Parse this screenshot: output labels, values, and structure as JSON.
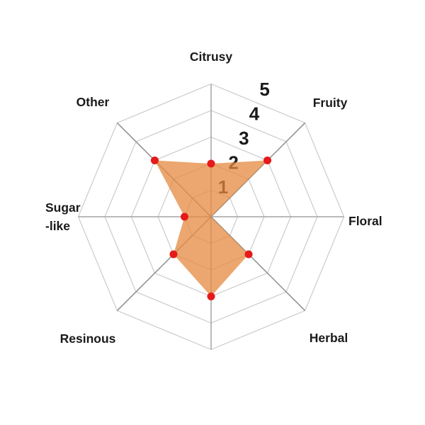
{
  "chart_data": {
    "type": "radar",
    "axes": [
      {
        "label": "Citrusy",
        "value": 2
      },
      {
        "label": "Fruity",
        "value": 3
      },
      {
        "label": "Floral",
        "value": 0
      },
      {
        "label": "Herbal",
        "value": 2
      },
      {
        "label": "",
        "value": 3
      },
      {
        "label": "Resinous",
        "value": 2
      },
      {
        "label": "Sugar\n-like",
        "value": 1
      },
      {
        "label": "Other",
        "value": 3
      }
    ],
    "scale": {
      "min": 0,
      "max": 5,
      "tick_labels": [
        "1",
        "2",
        "3",
        "4",
        "5"
      ]
    },
    "grid": {
      "shape": "octagon",
      "rings": 5,
      "visible": true
    },
    "legend": {
      "visible": false
    },
    "colors": {
      "series_fill": "#E48A3F",
      "series_fill_opacity": 0.75,
      "point": "#E61A1A",
      "ring_line": "#CBCBCB",
      "spoke_line": "#A3A3A3",
      "spoke_line_diagonal": "#8E8E8E",
      "text": "#1A1A1A",
      "background": "#FFFFFF"
    }
  }
}
